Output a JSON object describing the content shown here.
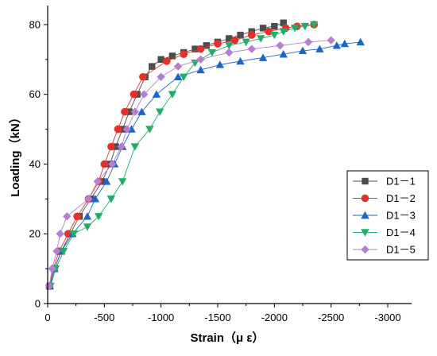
{
  "chart_data": {
    "type": "line",
    "xlabel": "Strain（μ ε）",
    "ylabel": "Loading（kN）",
    "xlim": [
      0,
      3000
    ],
    "ylim": [
      0,
      85
    ],
    "x_ticks": [
      0,
      500,
      1000,
      1500,
      2000,
      2500,
      3000
    ],
    "x_tick_labels": [
      "0",
      "-500",
      "-1000",
      "-1500",
      "-2000",
      "-2500",
      "-3000"
    ],
    "y_ticks": [
      0,
      20,
      40,
      60,
      80
    ],
    "y_tick_labels": [
      "0",
      "20",
      "40",
      "60",
      "80"
    ],
    "grid": false,
    "legend_position": "right-center",
    "series": [
      {
        "name": "D1－1",
        "color": "#4d4d4d",
        "marker": "square",
        "points": [
          [
            20,
            5
          ],
          [
            60,
            10
          ],
          [
            120,
            15
          ],
          [
            200,
            20
          ],
          [
            280,
            25
          ],
          [
            380,
            30
          ],
          [
            480,
            35
          ],
          [
            550,
            40
          ],
          [
            600,
            45
          ],
          [
            660,
            50
          ],
          [
            720,
            55
          ],
          [
            790,
            60
          ],
          [
            860,
            65
          ],
          [
            920,
            68
          ],
          [
            1000,
            70
          ],
          [
            1100,
            71
          ],
          [
            1200,
            72
          ],
          [
            1300,
            73
          ],
          [
            1400,
            74
          ],
          [
            1500,
            75
          ],
          [
            1600,
            76
          ],
          [
            1700,
            77
          ],
          [
            1800,
            78
          ],
          [
            1900,
            79
          ],
          [
            2000,
            79.5
          ],
          [
            2080,
            80.5
          ]
        ]
      },
      {
        "name": "D1－2",
        "color": "#e8302a",
        "marker": "circle",
        "points": [
          [
            15,
            5
          ],
          [
            50,
            10
          ],
          [
            100,
            15
          ],
          [
            180,
            20
          ],
          [
            260,
            25
          ],
          [
            360,
            30
          ],
          [
            450,
            35
          ],
          [
            500,
            40
          ],
          [
            560,
            45
          ],
          [
            620,
            50
          ],
          [
            680,
            55
          ],
          [
            760,
            60
          ],
          [
            840,
            65
          ],
          [
            1050,
            69.5
          ],
          [
            1200,
            71.5
          ],
          [
            1350,
            73
          ],
          [
            1500,
            74.5
          ],
          [
            1650,
            75.5
          ],
          [
            1800,
            77
          ],
          [
            1950,
            78
          ],
          [
            2100,
            79
          ],
          [
            2200,
            79.5
          ],
          [
            2350,
            80
          ]
        ]
      },
      {
        "name": "D1－3",
        "color": "#1a66c8",
        "marker": "triangle-up",
        "points": [
          [
            20,
            5
          ],
          [
            60,
            10
          ],
          [
            120,
            15
          ],
          [
            220,
            20
          ],
          [
            350,
            25
          ],
          [
            420,
            30
          ],
          [
            520,
            35
          ],
          [
            590,
            40
          ],
          [
            660,
            45
          ],
          [
            740,
            50
          ],
          [
            830,
            55
          ],
          [
            960,
            60
          ],
          [
            1150,
            65
          ],
          [
            1350,
            67
          ],
          [
            1520,
            68.5
          ],
          [
            1700,
            69.5
          ],
          [
            1900,
            70.5
          ],
          [
            2080,
            71.5
          ],
          [
            2250,
            72.5
          ],
          [
            2400,
            73
          ],
          [
            2550,
            74
          ],
          [
            2620,
            74.5
          ],
          [
            2760,
            75
          ]
        ]
      },
      {
        "name": "D1－4",
        "color": "#1fae66",
        "marker": "triangle-down",
        "points": [
          [
            25,
            5
          ],
          [
            70,
            10
          ],
          [
            140,
            15
          ],
          [
            230,
            20
          ],
          [
            350,
            22
          ],
          [
            450,
            25
          ],
          [
            560,
            30
          ],
          [
            660,
            35
          ],
          [
            770,
            45
          ],
          [
            900,
            50
          ],
          [
            990,
            55
          ],
          [
            1100,
            60
          ],
          [
            1200,
            65
          ],
          [
            1300,
            69
          ],
          [
            1450,
            72
          ],
          [
            1600,
            74
          ],
          [
            1750,
            75
          ],
          [
            1880,
            76
          ],
          [
            2000,
            77
          ],
          [
            2080,
            78
          ],
          [
            2180,
            79
          ],
          [
            2270,
            79.5
          ],
          [
            2350,
            80
          ]
        ]
      },
      {
        "name": "D1－5",
        "color": "#b47fd1",
        "marker": "diamond",
        "points": [
          [
            15,
            5
          ],
          [
            40,
            10
          ],
          [
            80,
            15
          ],
          [
            110,
            20
          ],
          [
            170,
            25
          ],
          [
            360,
            30
          ],
          [
            440,
            35
          ],
          [
            570,
            40
          ],
          [
            650,
            45
          ],
          [
            700,
            50
          ],
          [
            770,
            55
          ],
          [
            850,
            60
          ],
          [
            1000,
            65
          ],
          [
            1150,
            68
          ],
          [
            1350,
            70
          ],
          [
            1600,
            72
          ],
          [
            1800,
            73
          ],
          [
            2050,
            74
          ],
          [
            2300,
            75
          ],
          [
            2500,
            75.5
          ]
        ]
      }
    ]
  }
}
